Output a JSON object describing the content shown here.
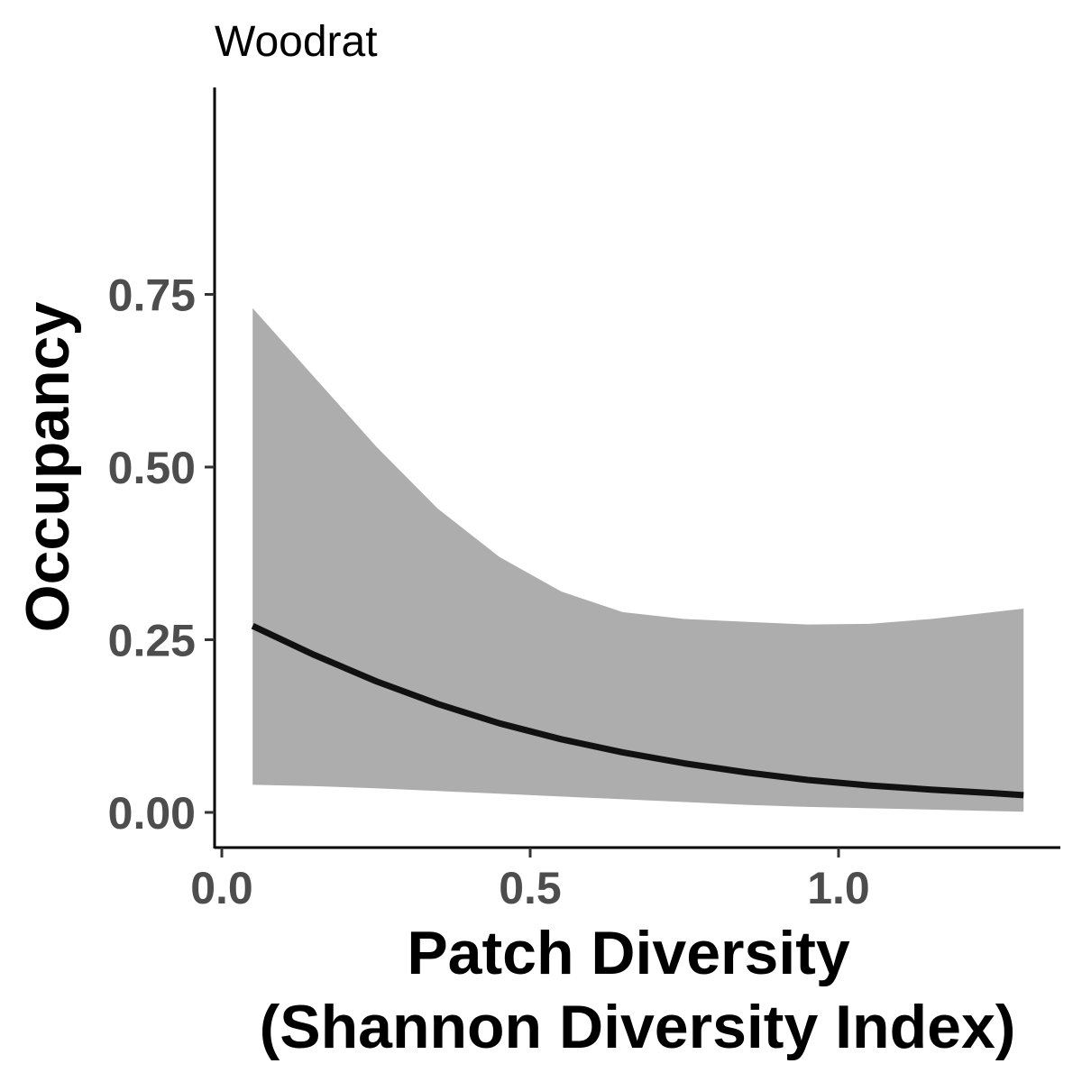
{
  "chart_data": {
    "type": "line",
    "title": "Woodrat",
    "xlabel": "Patch Diversity",
    "xlabel_line2": "(Shannon Diversity Index)",
    "ylabel": "Occupancy",
    "xlim": [
      -0.01,
      1.36
    ],
    "ylim": [
      -0.05,
      1.05
    ],
    "x_ticks": [
      0.0,
      0.5,
      1.0
    ],
    "x_tick_labels": [
      "0.0",
      "0.5",
      "1.0"
    ],
    "y_ticks": [
      0.0,
      0.25,
      0.5,
      0.75
    ],
    "y_tick_labels": [
      "0.00",
      "0.25",
      "0.50",
      "0.75"
    ],
    "grid": false,
    "series": [
      {
        "style": "line",
        "color": "#111111",
        "x": [
          0.05,
          0.15,
          0.25,
          0.35,
          0.45,
          0.55,
          0.65,
          0.75,
          0.85,
          0.95,
          1.05,
          1.15,
          1.25,
          1.3
        ],
        "y": [
          0.27,
          0.228,
          0.19,
          0.157,
          0.129,
          0.106,
          0.087,
          0.071,
          0.058,
          0.047,
          0.039,
          0.033,
          0.028,
          0.025
        ]
      }
    ],
    "ribbon": {
      "color": "#adadad",
      "x": [
        0.05,
        0.15,
        0.25,
        0.35,
        0.45,
        0.55,
        0.65,
        0.75,
        0.85,
        0.95,
        1.05,
        1.15,
        1.25,
        1.3
      ],
      "lower": [
        0.04,
        0.038,
        0.035,
        0.031,
        0.027,
        0.023,
        0.019,
        0.015,
        0.011,
        0.008,
        0.006,
        0.004,
        0.002,
        0.001
      ],
      "upper": [
        0.73,
        0.63,
        0.53,
        0.44,
        0.37,
        0.32,
        0.29,
        0.28,
        0.276,
        0.272,
        0.273,
        0.28,
        0.29,
        0.295
      ]
    }
  }
}
